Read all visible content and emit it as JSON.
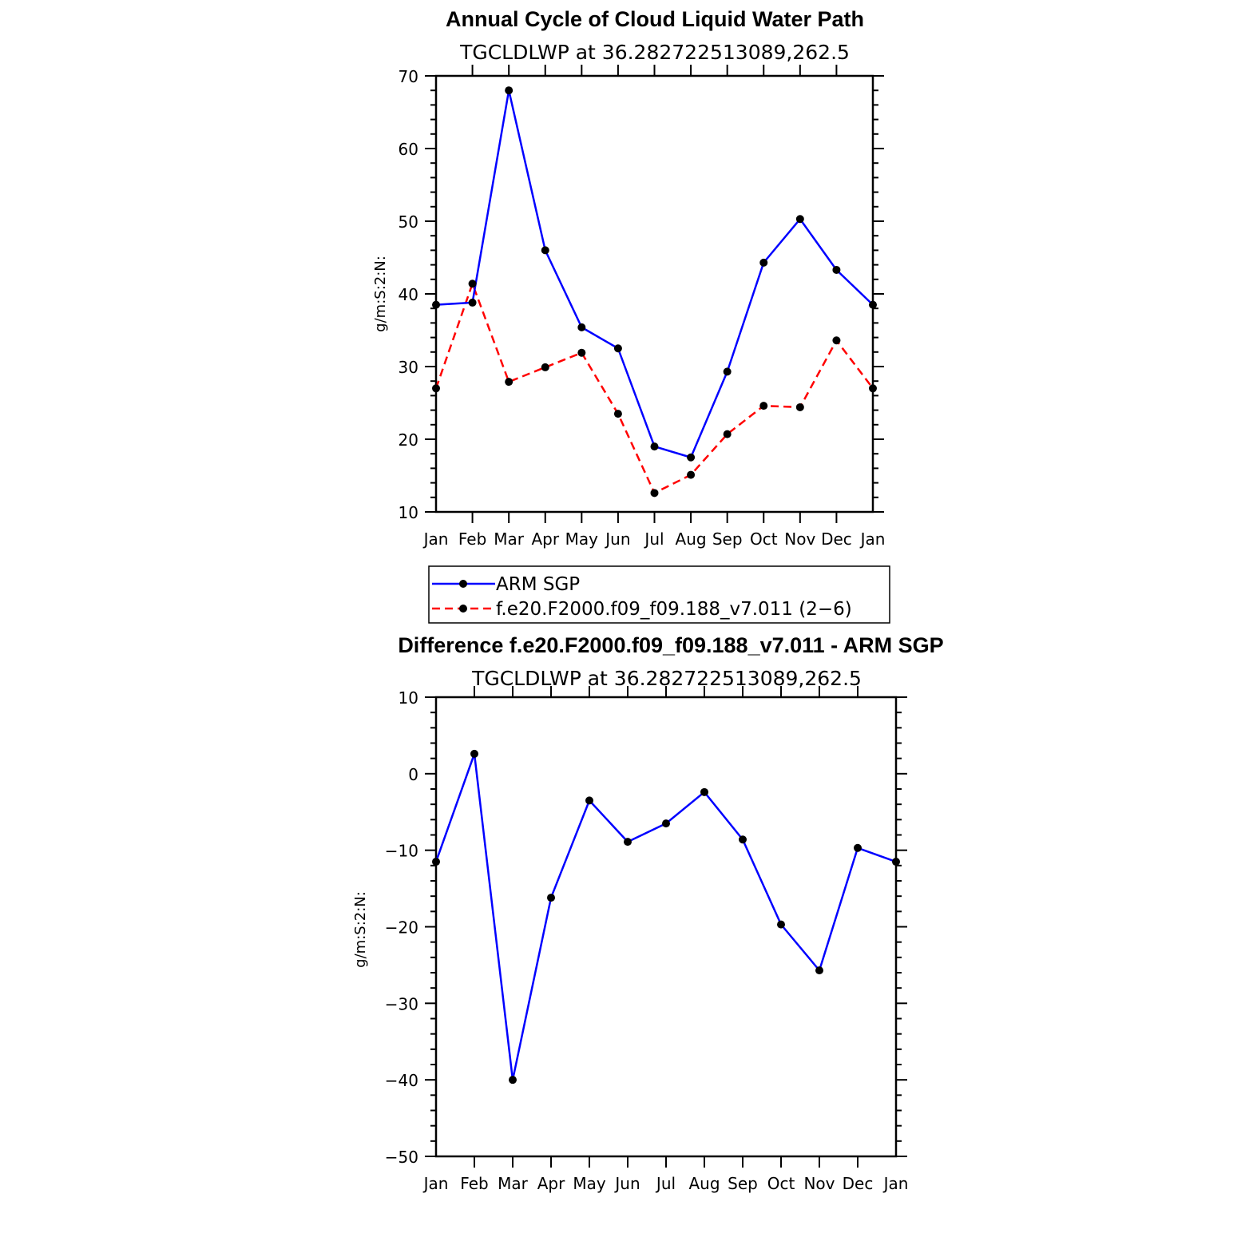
{
  "chart_data": [
    {
      "type": "line",
      "title": "Annual Cycle of Cloud Liquid Water Path",
      "subtitle": "TGCLDLWP at 36.282722513089,262.5",
      "xlabel": "",
      "ylabel": "g/m:S:2:N:",
      "categories": [
        "Jan",
        "Feb",
        "Mar",
        "Apr",
        "May",
        "Jun",
        "Jul",
        "Aug",
        "Sep",
        "Oct",
        "Nov",
        "Dec",
        "Jan"
      ],
      "ylim": [
        10,
        70
      ],
      "yticks": [
        10,
        20,
        30,
        40,
        50,
        60,
        70
      ],
      "grid": false,
      "series": [
        {
          "name": "ARM SGP",
          "color": "#0000ff",
          "dash": "solid",
          "values": [
            38.5,
            38.8,
            68.0,
            46.0,
            35.4,
            32.5,
            19.0,
            17.5,
            29.3,
            44.3,
            50.3,
            43.3,
            38.5
          ]
        },
        {
          "name": "f.e20.F2000.f09_f09.188_v7.011 (2−6)",
          "color": "#ff0000",
          "dash": "dashed",
          "values": [
            27.0,
            41.4,
            27.9,
            29.9,
            31.9,
            23.5,
            12.6,
            15.1,
            20.7,
            24.6,
            24.4,
            33.6,
            27.0
          ]
        }
      ],
      "legend": "below"
    },
    {
      "type": "line",
      "title": "Difference f.e20.F2000.f09_f09.188_v7.011 - ARM SGP",
      "subtitle": "TGCLDLWP at 36.282722513089,262.5",
      "xlabel": "",
      "ylabel": "g/m:S:2:N:",
      "categories": [
        "Jan",
        "Feb",
        "Mar",
        "Apr",
        "May",
        "Jun",
        "Jul",
        "Aug",
        "Sep",
        "Oct",
        "Nov",
        "Dec",
        "Jan"
      ],
      "ylim": [
        -50,
        10
      ],
      "yticks": [
        -50,
        -40,
        -30,
        -20,
        -10,
        0,
        10
      ],
      "ytick_labels": [
        "−50",
        "−40",
        "−30",
        "−20",
        "−10",
        "0",
        "10"
      ],
      "grid": false,
      "series": [
        {
          "name": "Difference",
          "color": "#0000ff",
          "dash": "solid",
          "values": [
            -11.5,
            2.6,
            -40.0,
            -16.2,
            -3.5,
            -8.9,
            -6.5,
            -2.4,
            -8.6,
            -19.7,
            -25.7,
            -9.7,
            -11.5
          ]
        }
      ]
    }
  ]
}
